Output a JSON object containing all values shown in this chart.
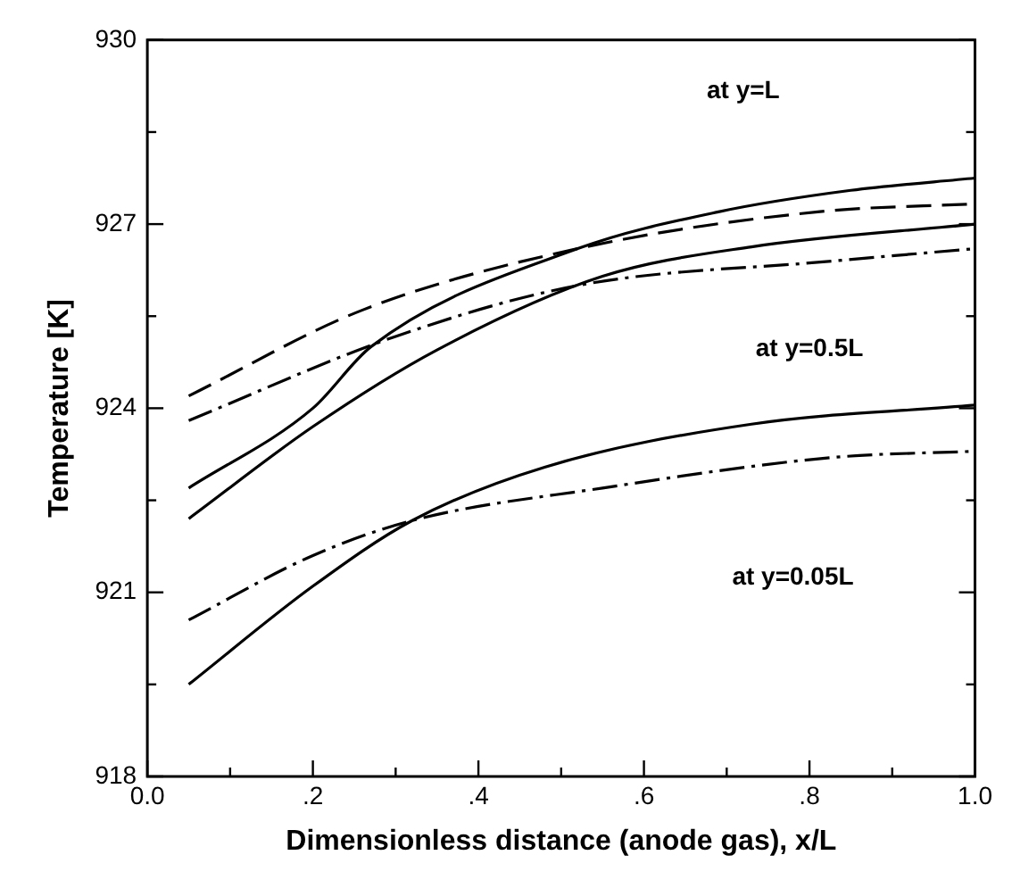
{
  "chart_data": {
    "type": "line",
    "xlabel": "Dimensionless distance (anode gas), x/L",
    "ylabel": "Temperature [K]",
    "xlim": [
      0,
      1
    ],
    "xticks": [
      {
        "value": 0,
        "label": "0.0"
      },
      {
        "value": 0.1,
        "label": null
      },
      {
        "value": 0.2,
        "label": ".2"
      },
      {
        "value": 0.3,
        "label": null
      },
      {
        "value": 0.4,
        "label": ".4"
      },
      {
        "value": 0.5,
        "label": null
      },
      {
        "value": 0.6,
        "label": ".6"
      },
      {
        "value": 0.7,
        "label": null
      },
      {
        "value": 0.8,
        "label": ".8"
      },
      {
        "value": 0.9,
        "label": null
      },
      {
        "value": 1,
        "label": "1.0"
      }
    ],
    "ylim": [
      918,
      930
    ],
    "yticks": [
      918,
      {
        "value": 919.5,
        "label": null
      },
      921,
      {
        "value": 922.5,
        "label": null
      },
      924,
      {
        "value": 925.5,
        "label": null
      },
      927,
      {
        "value": 928.5,
        "label": null
      },
      930
    ],
    "grid": false,
    "legend": false,
    "marker": "none",
    "series": [
      {
        "color": "#000000",
        "line_style": "solid",
        "x": [
          0.05,
          0.2,
          0.27,
          0.52,
          0.69,
          0.85,
          1.0
        ],
        "values": [
          922.7,
          924.0,
          925.0,
          926.6,
          927.2,
          927.55,
          927.75
        ]
      },
      {
        "color": "#000000",
        "line_style": "dashed",
        "x": [
          0.05,
          0.26,
          0.52,
          0.81,
          1.0
        ],
        "values": [
          924.2,
          925.6,
          926.6,
          927.2,
          927.33
        ]
      },
      {
        "color": "#000000",
        "line_style": "solid",
        "x": [
          0.05,
          0.2,
          0.35,
          0.55,
          0.73,
          1.0
        ],
        "values": [
          922.2,
          923.7,
          924.95,
          926.15,
          926.63,
          927.0
        ]
      },
      {
        "color": "#000000",
        "line_style": "dashdot",
        "x": [
          0.05,
          0.3,
          0.52,
          0.83,
          1.0
        ],
        "values": [
          923.8,
          925.17,
          926.0,
          926.4,
          926.6
        ]
      },
      {
        "color": "#000000",
        "line_style": "solid",
        "x": [
          0.05,
          0.2,
          0.32,
          0.48,
          0.73,
          1.0
        ],
        "values": [
          919.5,
          921.1,
          922.17,
          923.04,
          923.74,
          924.05
        ]
      },
      {
        "color": "#000000",
        "line_style": "dashdot",
        "x": [
          0.05,
          0.2,
          0.32,
          0.55,
          0.83,
          1.0
        ],
        "values": [
          920.55,
          921.6,
          922.17,
          922.7,
          923.2,
          923.3
        ]
      }
    ],
    "annotations": [
      "at y=L",
      "at y=0.5L",
      "at y=0.05L"
    ]
  }
}
